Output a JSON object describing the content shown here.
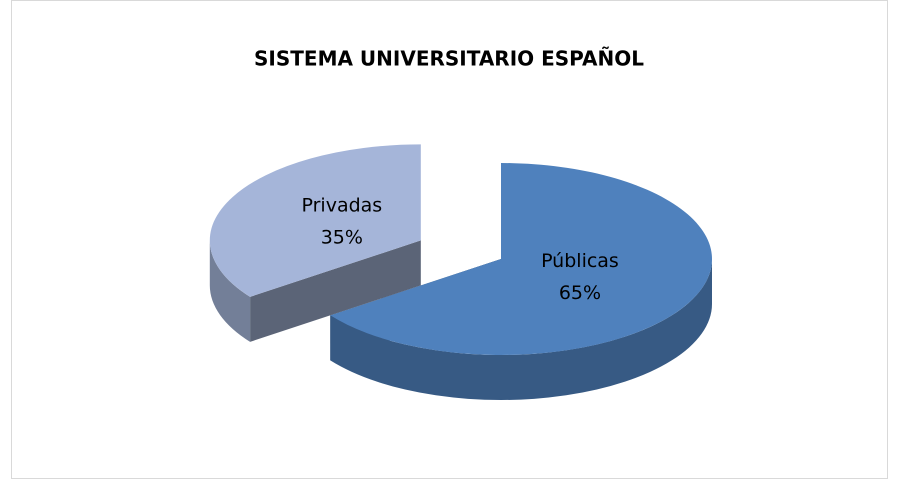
{
  "chart_data": {
    "type": "pie",
    "title": "SISTEMA UNIVERSITARIO ESPAÑOL",
    "categories": [
      "Públicas",
      "Privadas"
    ],
    "values": [
      65,
      35
    ],
    "value_labels": [
      "65%",
      "35%"
    ],
    "colors": [
      "#4f81bd",
      "#a5b5d9"
    ],
    "exploded": [
      false,
      true
    ]
  }
}
